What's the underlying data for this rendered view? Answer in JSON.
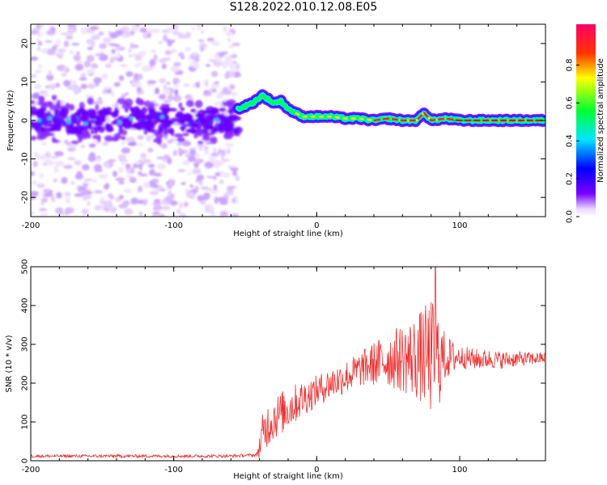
{
  "title": "S128.2022.010.12.08.E05",
  "chart_data": [
    {
      "type": "heatmap",
      "xlabel": "Height of straight line (km)",
      "ylabel": "Frequency (Hz)",
      "xlim": [
        -200,
        160
      ],
      "ylim": [
        -25,
        25
      ],
      "xticks": [
        -200,
        -100,
        0,
        100
      ],
      "yticks": [
        -20,
        -10,
        0,
        10,
        20
      ],
      "colorbar": {
        "label": "Normalized spectral amplitude",
        "range": [
          0,
          1
        ],
        "ticks": [
          "0.0",
          "0.2",
          "0.4",
          "0.6",
          "0.8"
        ],
        "colors": [
          "#ffffff",
          "#7b00ff",
          "#0000ff",
          "#00ffff",
          "#00ff00",
          "#ffff00",
          "#ff0000",
          "#ff0066"
        ]
      },
      "ridge_frequency": {
        "x": [
          -55,
          -45,
          -38,
          -30,
          -25,
          -20,
          -15,
          -10,
          0,
          10,
          20,
          30,
          40,
          50,
          60,
          70,
          75,
          80,
          90,
          100,
          110,
          120,
          130,
          140,
          150,
          160
        ],
        "y": [
          3,
          4.5,
          6.5,
          4.5,
          5,
          3,
          2,
          1,
          1,
          1,
          0.5,
          0.5,
          0,
          0.5,
          0,
          0,
          2,
          0,
          0.5,
          0,
          0,
          0,
          0,
          0,
          0,
          0
        ]
      },
      "noise_region_end_x": -55
    },
    {
      "type": "line",
      "xlabel": "Height of straight line (km)",
      "ylabel": "SNR (10 * v/v)",
      "xlim": [
        -200,
        160
      ],
      "ylim": [
        0,
        500
      ],
      "xticks": [
        -200,
        -100,
        0,
        100
      ],
      "yticks": [
        0,
        100,
        200,
        300,
        400,
        500
      ],
      "color": "#ee3333",
      "series_envelope": {
        "x": [
          -200,
          -150,
          -100,
          -60,
          -42,
          -38,
          -35,
          -30,
          -20,
          -10,
          0,
          10,
          20,
          30,
          40,
          50,
          60,
          70,
          75,
          80,
          83,
          85,
          90,
          100,
          110,
          120,
          130,
          140,
          150,
          160
        ],
        "y": [
          12,
          12,
          12,
          12,
          15,
          60,
          90,
          110,
          135,
          160,
          180,
          200,
          215,
          235,
          250,
          260,
          265,
          265,
          270,
          265,
          280,
          260,
          265,
          268,
          262,
          262,
          260,
          262,
          263,
          265
        ]
      },
      "noise_amplitude": {
        "x": [
          -200,
          -42,
          -38,
          -20,
          0,
          30,
          50,
          70,
          80,
          85,
          90,
          100,
          160
        ],
        "y": [
          4,
          4,
          60,
          55,
          40,
          45,
          70,
          110,
          150,
          130,
          60,
          30,
          15
        ]
      },
      "peak": {
        "x": 83,
        "y": 500
      }
    }
  ]
}
